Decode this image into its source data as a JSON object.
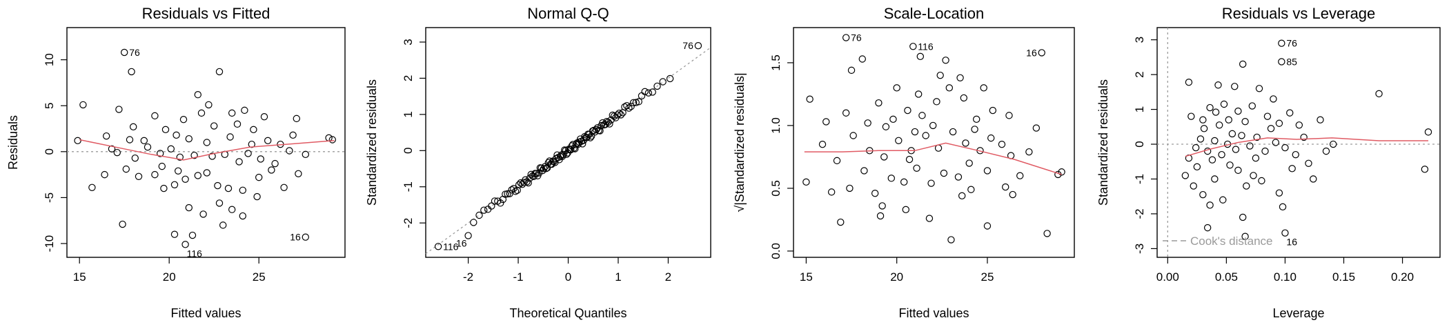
{
  "chart_data": [
    {
      "id": "p1",
      "type": "scatter",
      "title": "Residuals vs Fitted",
      "xlabel": "Fitted values",
      "ylabel": "Residuals",
      "xlim": [
        14.3,
        29.8
      ],
      "ylim": [
        -11.5,
        13.5
      ],
      "xticks": [
        15,
        20,
        25
      ],
      "yticks": [
        -10,
        -5,
        0,
        5,
        10
      ],
      "ref_hline": 0,
      "points": [
        [
          17.5,
          10.8
        ],
        [
          17.9,
          8.7
        ],
        [
          22.8,
          8.7
        ],
        [
          15.2,
          5.1
        ],
        [
          17.2,
          4.6
        ],
        [
          24.2,
          4.5
        ],
        [
          21.8,
          4.2
        ],
        [
          23.5,
          4.2
        ],
        [
          27.1,
          3.6
        ],
        [
          19.2,
          3.9
        ],
        [
          16.5,
          1.7
        ],
        [
          17.8,
          1.3
        ],
        [
          18.6,
          1.2
        ],
        [
          19.8,
          2.4
        ],
        [
          20.4,
          1.8
        ],
        [
          21.1,
          1.4
        ],
        [
          22.1,
          1.0
        ],
        [
          23.4,
          1.6
        ],
        [
          24.6,
          0.8
        ],
        [
          25.5,
          1.2
        ],
        [
          26.2,
          0.8
        ],
        [
          28.9,
          1.5
        ],
        [
          29.1,
          1.3
        ],
        [
          14.9,
          1.2
        ],
        [
          16.8,
          0.3
        ],
        [
          17.1,
          -0.1
        ],
        [
          18.1,
          -0.7
        ],
        [
          18.8,
          0.5
        ],
        [
          19.5,
          -0.2
        ],
        [
          20.1,
          0.3
        ],
        [
          20.6,
          -0.6
        ],
        [
          21.4,
          -0.4
        ],
        [
          22.4,
          -0.5
        ],
        [
          23.1,
          -0.3
        ],
        [
          23.9,
          -1.1
        ],
        [
          24.4,
          -0.2
        ],
        [
          25.1,
          -0.8
        ],
        [
          25.9,
          -1.3
        ],
        [
          26.7,
          0.1
        ],
        [
          27.6,
          -0.3
        ],
        [
          15.7,
          -3.9
        ],
        [
          16.4,
          -2.5
        ],
        [
          17.6,
          -1.9
        ],
        [
          18.3,
          -2.7
        ],
        [
          19.2,
          -2.5
        ],
        [
          19.7,
          -4.0
        ],
        [
          20.3,
          -3.6
        ],
        [
          20.9,
          -3.0
        ],
        [
          21.6,
          -2.6
        ],
        [
          22.1,
          -2.3
        ],
        [
          22.7,
          -3.7
        ],
        [
          23.3,
          -4.0
        ],
        [
          24.1,
          -4.2
        ],
        [
          25.0,
          -2.8
        ],
        [
          25.7,
          -2.0
        ],
        [
          26.4,
          -3.9
        ],
        [
          27.2,
          -2.4
        ],
        [
          17.4,
          -7.9
        ],
        [
          21.1,
          -6.1
        ],
        [
          22.8,
          -5.6
        ],
        [
          23.5,
          -6.3
        ],
        [
          24.1,
          -7.0
        ],
        [
          20.3,
          -9.0
        ],
        [
          20.9,
          -10.1
        ],
        [
          21.3,
          -9.1
        ],
        [
          27.6,
          -9.3
        ],
        [
          21.9,
          -6.8
        ],
        [
          23.0,
          -8.0
        ],
        [
          22.5,
          2.8
        ],
        [
          23.8,
          3.0
        ],
        [
          21.6,
          6.2
        ],
        [
          24.7,
          2.4
        ],
        [
          20.8,
          3.5
        ],
        [
          22.2,
          5.1
        ],
        [
          19.6,
          -1.6
        ],
        [
          24.9,
          -4.9
        ],
        [
          18.0,
          2.7
        ],
        [
          26.9,
          1.8
        ],
        [
          25.3,
          3.8
        ],
        [
          20.5,
          -2.1
        ]
      ],
      "smooth": [
        [
          15.0,
          1.3
        ],
        [
          17.0,
          0.5
        ],
        [
          19.0,
          -0.3
        ],
        [
          20.8,
          -0.9
        ],
        [
          22.5,
          -0.2
        ],
        [
          24.5,
          0.5
        ],
        [
          26.5,
          0.8
        ],
        [
          29.2,
          1.2
        ]
      ],
      "point_labels": [
        {
          "x": 17.5,
          "y": 10.8,
          "text": "76",
          "side": "right"
        },
        {
          "x": 20.9,
          "y": -10.1,
          "text": "116",
          "side": "below-right"
        },
        {
          "x": 27.6,
          "y": -9.3,
          "text": "16",
          "side": "left"
        }
      ]
    },
    {
      "id": "p2",
      "type": "scatter",
      "title": "Normal Q-Q",
      "xlabel": "Theoretical Quantiles",
      "ylabel": "Standardized residuals",
      "xlim": [
        -2.85,
        2.85
      ],
      "ylim": [
        -2.95,
        3.4
      ],
      "xticks": [
        -2,
        -1,
        0,
        1,
        2
      ],
      "yticks": [
        -2,
        -1,
        0,
        1,
        2,
        3
      ],
      "ref_line": [
        [
          -2.85,
          -2.85
        ],
        [
          2.85,
          2.85
        ]
      ],
      "qq_n": 120,
      "qq_outliers": [
        [
          -2.6,
          -2.65
        ],
        [
          -2.0,
          -2.35
        ],
        [
          2.6,
          2.9
        ]
      ],
      "point_labels": [
        {
          "x": -2.6,
          "y": -2.65,
          "text": "116",
          "side": "right"
        },
        {
          "x": -2.0,
          "y": -2.35,
          "text": "16",
          "side": "below-left"
        },
        {
          "x": 2.6,
          "y": 2.9,
          "text": "76",
          "side": "left"
        }
      ]
    },
    {
      "id": "p3",
      "type": "scatter",
      "title": "Scale-Location",
      "xlabel": "Fitted values",
      "ylabel": "√|Standardized residuals|",
      "xlim": [
        14.3,
        29.8
      ],
      "ylim": [
        -0.05,
        1.78
      ],
      "xticks": [
        15,
        20,
        25
      ],
      "yticks": [
        0.0,
        0.5,
        1.0,
        1.5
      ],
      "points": [
        [
          17.2,
          1.7
        ],
        [
          17.5,
          1.44
        ],
        [
          18.1,
          1.53
        ],
        [
          20.9,
          1.63
        ],
        [
          21.3,
          1.55
        ],
        [
          28.0,
          1.58
        ],
        [
          22.7,
          1.52
        ],
        [
          15.2,
          1.21
        ],
        [
          16.1,
          1.03
        ],
        [
          17.2,
          1.1
        ],
        [
          18.4,
          1.02
        ],
        [
          19.0,
          1.18
        ],
        [
          19.8,
          1.05
        ],
        [
          20.6,
          1.12
        ],
        [
          21.4,
          1.08
        ],
        [
          22.2,
          1.19
        ],
        [
          22.9,
          1.3
        ],
        [
          23.7,
          1.22
        ],
        [
          24.4,
          1.05
        ],
        [
          25.3,
          1.12
        ],
        [
          26.2,
          1.08
        ],
        [
          27.7,
          0.98
        ],
        [
          15.9,
          0.85
        ],
        [
          16.7,
          0.72
        ],
        [
          17.6,
          0.92
        ],
        [
          18.5,
          0.8
        ],
        [
          19.3,
          0.75
        ],
        [
          20.1,
          0.88
        ],
        [
          20.8,
          0.8
        ],
        [
          21.6,
          0.92
        ],
        [
          22.3,
          0.82
        ],
        [
          23.1,
          0.95
        ],
        [
          23.8,
          0.86
        ],
        [
          24.6,
          0.8
        ],
        [
          25.2,
          0.9
        ],
        [
          26.3,
          0.76
        ],
        [
          15.0,
          0.55
        ],
        [
          16.4,
          0.47
        ],
        [
          17.4,
          0.5
        ],
        [
          18.8,
          0.46
        ],
        [
          19.7,
          0.58
        ],
        [
          20.4,
          0.55
        ],
        [
          21.1,
          0.66
        ],
        [
          21.9,
          0.54
        ],
        [
          22.6,
          0.62
        ],
        [
          23.4,
          0.59
        ],
        [
          24.1,
          0.49
        ],
        [
          25.0,
          0.64
        ],
        [
          26.0,
          0.51
        ],
        [
          26.8,
          0.6
        ],
        [
          16.9,
          0.23
        ],
        [
          19.2,
          0.36
        ],
        [
          20.5,
          0.33
        ],
        [
          21.8,
          0.26
        ],
        [
          23.0,
          0.09
        ],
        [
          25.0,
          0.2
        ],
        [
          26.4,
          0.45
        ],
        [
          28.3,
          0.14
        ],
        [
          29.1,
          0.63
        ],
        [
          28.9,
          0.61
        ],
        [
          20.0,
          1.3
        ],
        [
          21.2,
          1.25
        ],
        [
          23.5,
          1.38
        ],
        [
          19.4,
          0.99
        ],
        [
          22.4,
          1.4
        ],
        [
          24.8,
          1.3
        ],
        [
          21.0,
          0.95
        ],
        [
          22.0,
          1.0
        ],
        [
          24.0,
          0.7
        ],
        [
          25.8,
          0.85
        ],
        [
          18.2,
          0.64
        ],
        [
          27.3,
          0.79
        ],
        [
          20.7,
          0.73
        ],
        [
          23.6,
          0.44
        ],
        [
          24.3,
          0.97
        ],
        [
          19.1,
          0.28
        ]
      ],
      "smooth": [
        [
          14.9,
          0.79
        ],
        [
          17.0,
          0.79
        ],
        [
          19.0,
          0.8
        ],
        [
          21.0,
          0.8
        ],
        [
          22.7,
          0.86
        ],
        [
          24.5,
          0.8
        ],
        [
          26.5,
          0.73
        ],
        [
          29.1,
          0.61
        ]
      ],
      "point_labels": [
        {
          "x": 17.2,
          "y": 1.7,
          "text": "76",
          "side": "right"
        },
        {
          "x": 20.9,
          "y": 1.63,
          "text": "116",
          "side": "right"
        },
        {
          "x": 28.0,
          "y": 1.58,
          "text": "16",
          "side": "left"
        }
      ]
    },
    {
      "id": "p4",
      "type": "scatter",
      "title": "Residuals vs Leverage",
      "xlabel": "Leverage",
      "ylabel": "Standardized residuals",
      "xlim": [
        -0.009,
        0.232
      ],
      "ylim": [
        -3.25,
        3.35
      ],
      "xticks": [
        0.0,
        0.05,
        0.1,
        0.15,
        0.2
      ],
      "xticklabels": [
        "0.00",
        "0.05",
        "0.10",
        "0.15",
        "0.20"
      ],
      "yticks": [
        -3,
        -2,
        -1,
        0,
        1,
        2,
        3
      ],
      "ref_hline": 0,
      "ref_vline": 0,
      "legend_text": "Cook's distance",
      "points": [
        [
          0.097,
          2.9
        ],
        [
          0.097,
          2.37
        ],
        [
          0.064,
          2.3
        ],
        [
          0.018,
          1.78
        ],
        [
          0.043,
          1.7
        ],
        [
          0.057,
          1.66
        ],
        [
          0.078,
          1.6
        ],
        [
          0.18,
          1.45
        ],
        [
          0.02,
          0.8
        ],
        [
          0.03,
          0.7
        ],
        [
          0.036,
          1.05
        ],
        [
          0.041,
          0.92
        ],
        [
          0.048,
          1.15
        ],
        [
          0.052,
          0.7
        ],
        [
          0.06,
          0.95
        ],
        [
          0.066,
          0.65
        ],
        [
          0.072,
          1.1
        ],
        [
          0.085,
          0.8
        ],
        [
          0.09,
          1.3
        ],
        [
          0.104,
          0.9
        ],
        [
          0.112,
          0.55
        ],
        [
          0.13,
          0.7
        ],
        [
          0.018,
          -0.4
        ],
        [
          0.024,
          -0.1
        ],
        [
          0.028,
          0.15
        ],
        [
          0.034,
          -0.2
        ],
        [
          0.04,
          0.1
        ],
        [
          0.046,
          -0.3
        ],
        [
          0.051,
          0.0
        ],
        [
          0.058,
          -0.15
        ],
        [
          0.063,
          0.25
        ],
        [
          0.07,
          -0.05
        ],
        [
          0.076,
          0.2
        ],
        [
          0.083,
          -0.2
        ],
        [
          0.092,
          0.05
        ],
        [
          0.1,
          -0.1
        ],
        [
          0.116,
          0.2
        ],
        [
          0.141,
          0.0
        ],
        [
          0.222,
          0.35
        ],
        [
          0.015,
          -0.9
        ],
        [
          0.022,
          -1.2
        ],
        [
          0.03,
          -1.45
        ],
        [
          0.036,
          -1.75
        ],
        [
          0.04,
          -1.0
        ],
        [
          0.047,
          -1.6
        ],
        [
          0.053,
          -0.6
        ],
        [
          0.06,
          -0.75
        ],
        [
          0.067,
          -1.2
        ],
        [
          0.073,
          -0.9
        ],
        [
          0.08,
          -1.05
        ],
        [
          0.095,
          -1.4
        ],
        [
          0.106,
          -0.7
        ],
        [
          0.12,
          -0.55
        ],
        [
          0.124,
          -1.0
        ],
        [
          0.219,
          -0.72
        ],
        [
          0.064,
          -2.1
        ],
        [
          0.034,
          -2.4
        ],
        [
          0.1,
          -2.55
        ],
        [
          0.066,
          -2.65
        ],
        [
          0.098,
          -1.8
        ],
        [
          0.031,
          0.45
        ],
        [
          0.044,
          0.55
        ],
        [
          0.055,
          0.3
        ],
        [
          0.088,
          0.45
        ],
        [
          0.109,
          -0.3
        ],
        [
          0.135,
          -0.2
        ],
        [
          0.025,
          -0.65
        ],
        [
          0.038,
          -0.45
        ],
        [
          0.075,
          -0.4
        ],
        [
          0.095,
          0.6
        ]
      ],
      "smooth": [
        [
          0.015,
          -0.35
        ],
        [
          0.035,
          -0.15
        ],
        [
          0.06,
          0.05
        ],
        [
          0.085,
          0.18
        ],
        [
          0.11,
          0.14
        ],
        [
          0.14,
          0.18
        ],
        [
          0.18,
          0.1
        ],
        [
          0.222,
          0.1
        ]
      ],
      "point_labels": [
        {
          "x": 0.097,
          "y": 2.9,
          "text": "76",
          "side": "right"
        },
        {
          "x": 0.097,
          "y": 2.37,
          "text": "85",
          "side": "right"
        },
        {
          "x": 0.1,
          "y": -2.55,
          "text": "16",
          "side": "below-right"
        }
      ]
    }
  ],
  "colors": {
    "smooth": "#e05a63",
    "reference": "#9a9a9a",
    "points": "#000000"
  }
}
